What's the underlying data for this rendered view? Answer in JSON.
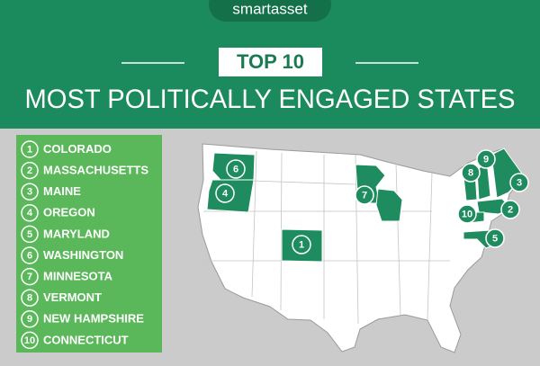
{
  "header": {
    "brand": "smartasset",
    "badge": "TOP 10",
    "title": "MOST POLITICALLY ENGAGED STATES"
  },
  "list": {
    "items": [
      {
        "rank": "1",
        "name": "COLORADO"
      },
      {
        "rank": "2",
        "name": "MASSACHUSETTS"
      },
      {
        "rank": "3",
        "name": "MAINE"
      },
      {
        "rank": "4",
        "name": "OREGON"
      },
      {
        "rank": "5",
        "name": "MARYLAND"
      },
      {
        "rank": "6",
        "name": "WASHINGTON"
      },
      {
        "rank": "7",
        "name": "MINNESOTA"
      },
      {
        "rank": "8",
        "name": "VERMONT"
      },
      {
        "rank": "9",
        "name": "NEW HAMPSHIRE"
      },
      {
        "rank": "10",
        "name": "CONNECTICUT"
      }
    ]
  }
}
